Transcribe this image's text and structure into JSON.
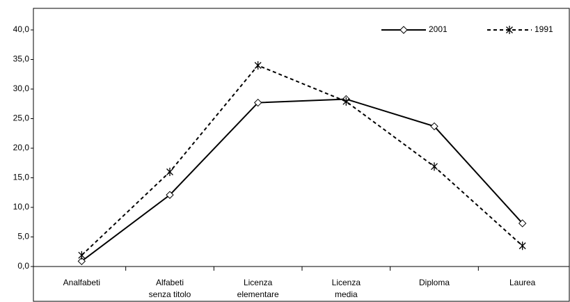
{
  "chart_data": {
    "type": "line",
    "categories": [
      "Analfabeti",
      "Alfabeti\nsenza titolo",
      "Licenza\nelementare",
      "Licenza\nmedia",
      "Diploma",
      "Laurea"
    ],
    "series": [
      {
        "name": "2001",
        "color": "#000000",
        "dash": "solid",
        "marker": "diamond",
        "values": [
          0.9,
          12.1,
          27.7,
          28.3,
          23.7,
          7.3
        ]
      },
      {
        "name": "1991",
        "color": "#000000",
        "dash": "dashed",
        "marker": "star",
        "values": [
          1.9,
          16.0,
          34.0,
          27.9,
          16.9,
          3.5
        ]
      }
    ],
    "ylim": [
      0,
      40
    ],
    "yticks": [
      {
        "value": 0,
        "label": "0,0"
      },
      {
        "value": 5,
        "label": "5,0"
      },
      {
        "value": 10,
        "label": "10,0"
      },
      {
        "value": 15,
        "label": "15,0"
      },
      {
        "value": 20,
        "label": "20,0"
      },
      {
        "value": 25,
        "label": "25,0"
      },
      {
        "value": 30,
        "label": "30,0"
      },
      {
        "value": 35,
        "label": "35,0"
      },
      {
        "value": 40,
        "label": "40,0"
      }
    ],
    "grid": false,
    "legend": "top-right"
  }
}
